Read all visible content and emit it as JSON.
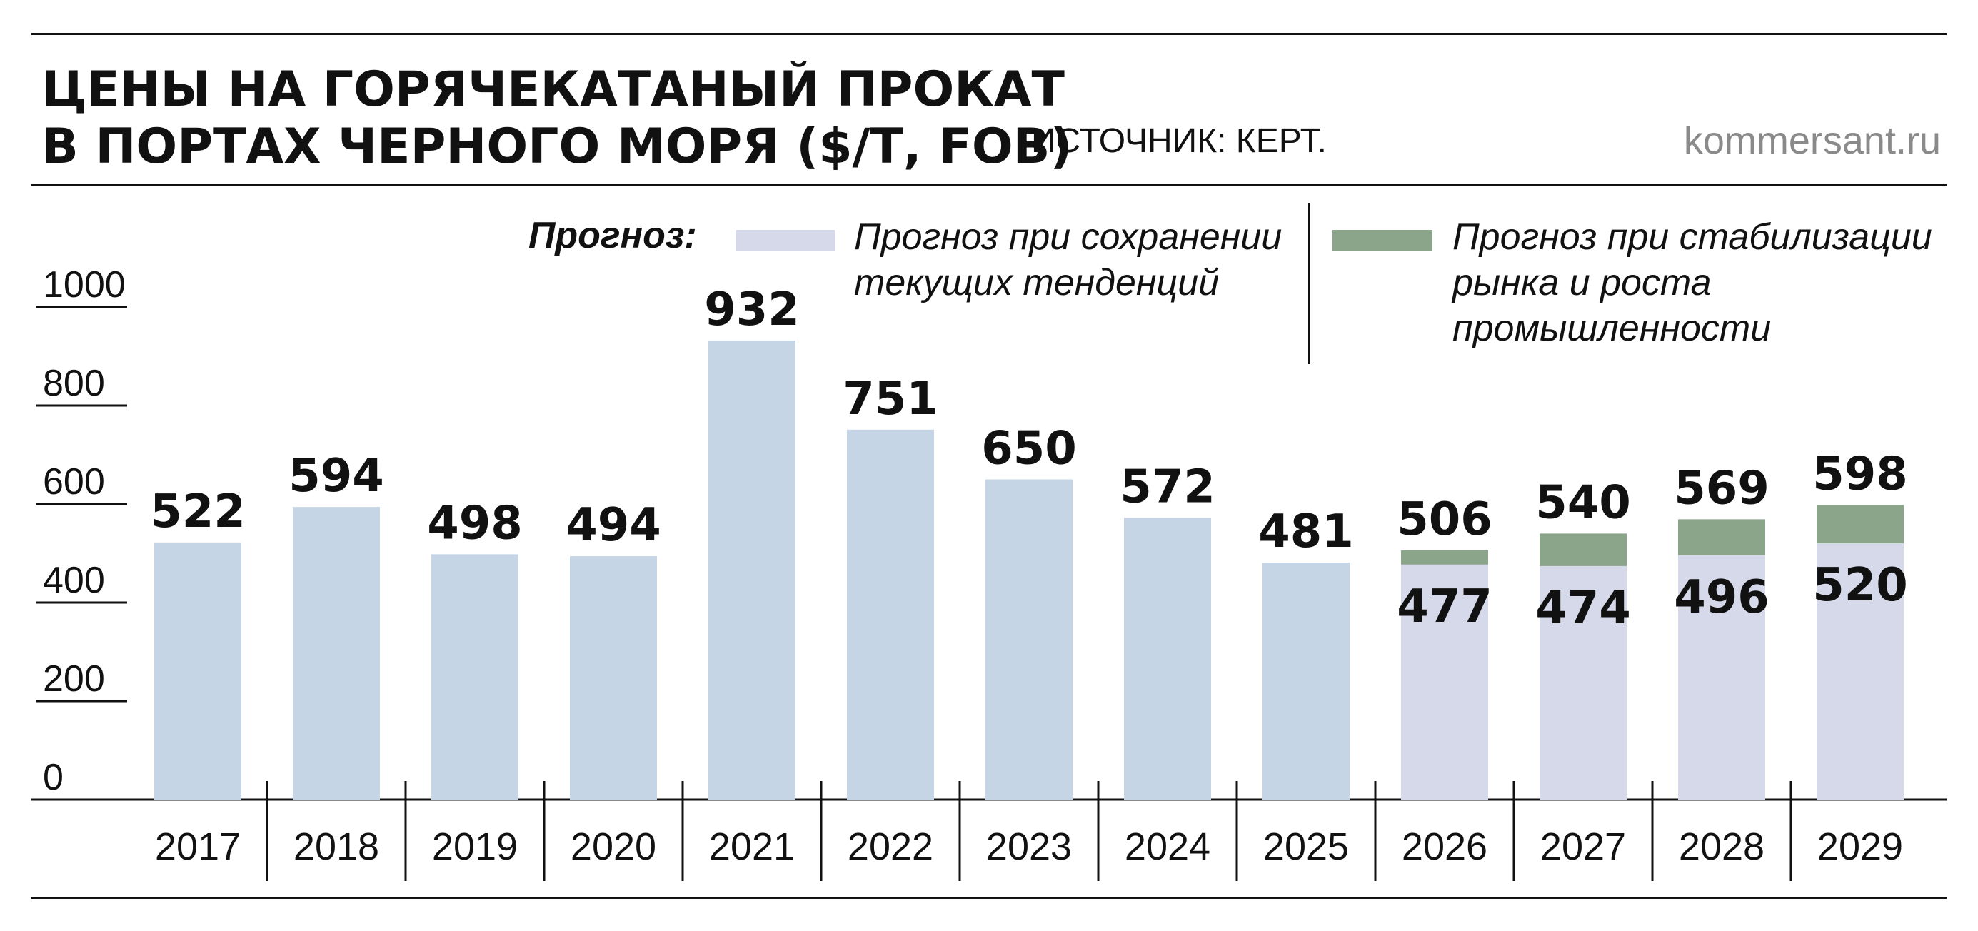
{
  "header": {
    "title_line1": "ЦЕНЫ НА ГОРЯЧЕКАТАНЫЙ ПРОКАТ",
    "title_line2": "В ПОРТАХ ЧЕРНОГО МОРЯ ($/Т, FOB)",
    "source": "ИСТОЧНИК: КЕРТ.",
    "site": "kommersant.ru"
  },
  "legend": {
    "heading": "Прогноз:",
    "items": [
      {
        "line1": "Прогноз при сохранении",
        "line2": "текущих тенденций",
        "line3": "",
        "color": "#d6d9ea"
      },
      {
        "line1": "Прогноз при стабилизации",
        "line2": "рынка и роста",
        "line3": "промышленности",
        "color": "#8aa58a"
      }
    ]
  },
  "colors": {
    "actual": "#c5d5e6",
    "forecast_current": "#d6d9ea",
    "forecast_stabilization": "#8aa58a"
  },
  "chart_data": {
    "type": "bar",
    "title": "ЦЕНЫ НА ГОРЯЧЕКАТАНЫЙ ПРОКАТ В ПОРТАХ ЧЕРНОГО МОРЯ ($/Т, FOB)",
    "xlabel": "",
    "ylabel": "",
    "ylim": [
      0,
      1000
    ],
    "yticks": [
      0,
      200,
      400,
      600,
      800,
      1000
    ],
    "grid": false,
    "legend_position": "top-right",
    "categories": [
      "2017",
      "2018",
      "2019",
      "2020",
      "2021",
      "2022",
      "2023",
      "2024",
      "2025",
      "2026",
      "2027",
      "2028",
      "2029"
    ],
    "series": [
      {
        "values": [
          522,
          594,
          498,
          494,
          932,
          751,
          650,
          572,
          481,
          null,
          null,
          null,
          null
        ]
      },
      {
        "name": "Прогноз при сохранении текущих тенденций",
        "values": [
          null,
          null,
          null,
          null,
          null,
          null,
          null,
          null,
          null,
          477,
          474,
          496,
          520
        ]
      },
      {
        "name": "Прогноз при стабилизации рынка и роста промышленности",
        "values": [
          null,
          null,
          null,
          null,
          null,
          null,
          null,
          null,
          null,
          506,
          540,
          569,
          598
        ]
      }
    ]
  }
}
